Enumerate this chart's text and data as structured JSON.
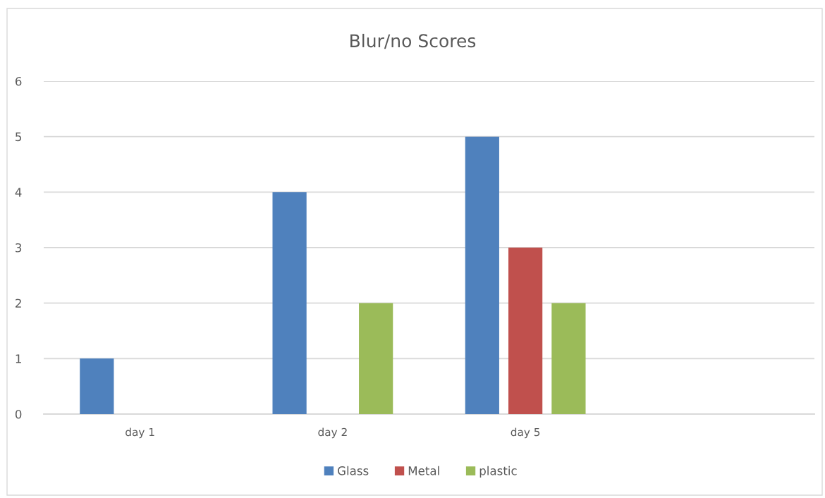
{
  "chart_data": {
    "type": "bar",
    "title": "Blur/no Scores",
    "categories": [
      "day 1",
      "day 2",
      "day 5",
      null
    ],
    "series": [
      {
        "name": "Glass",
        "color": "#4f81bd",
        "values": [
          1,
          4,
          5,
          null
        ]
      },
      {
        "name": "Metal",
        "color": "#c0504d",
        "values": [
          null,
          null,
          3,
          null
        ]
      },
      {
        "name": "plastic",
        "color": "#9bbb59",
        "values": [
          null,
          2,
          2,
          null
        ]
      }
    ],
    "ylim": [
      0,
      6
    ],
    "yticks": [
      0,
      1,
      2,
      3,
      4,
      5,
      6
    ],
    "grid": "y",
    "legend": "bottom"
  }
}
